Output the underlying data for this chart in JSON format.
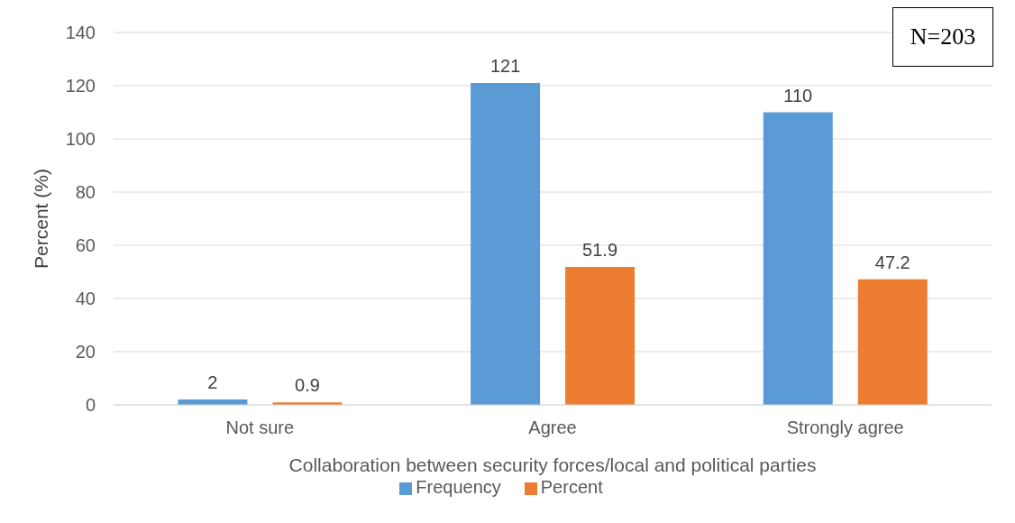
{
  "chart_data": {
    "type": "bar",
    "xlabel": "Collaboration between security forces/local and political parties",
    "ylabel": "Percent (%)",
    "categories": [
      "Not sure",
      "Agree",
      "Strongly agree"
    ],
    "series": [
      {
        "name": "Frequency",
        "color": "#5b9bd5",
        "values": [
          2,
          121,
          110
        ]
      },
      {
        "name": "Percent",
        "color": "#ed7d31",
        "values": [
          0.9,
          51.9,
          47.2
        ]
      }
    ],
    "ylim": [
      0,
      140
    ],
    "yticks": [
      0,
      20,
      40,
      60,
      80,
      100,
      120,
      140
    ],
    "grid": "y",
    "legend": "bottom",
    "data_labels": true,
    "annotations": [
      "N=203"
    ]
  }
}
